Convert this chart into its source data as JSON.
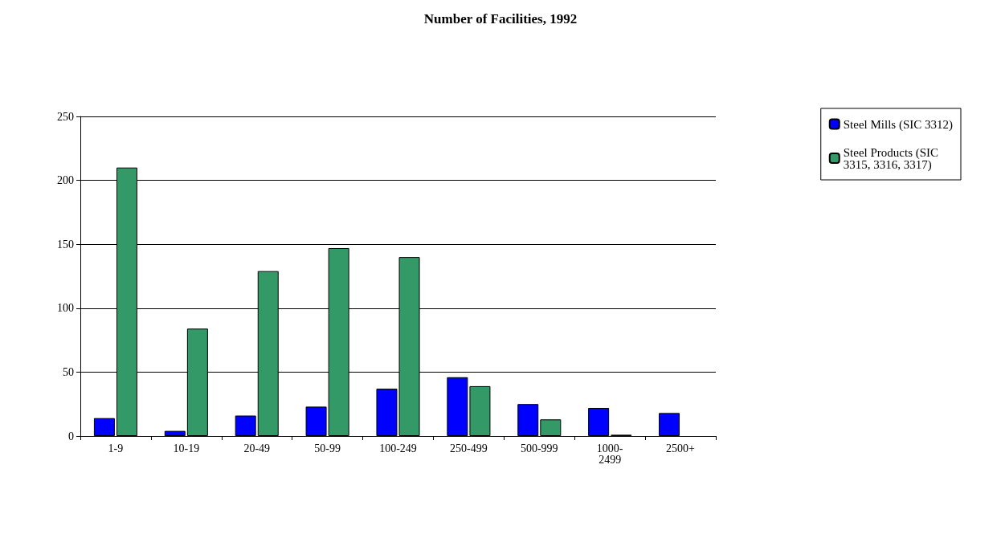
{
  "chart_data": {
    "type": "bar",
    "title": "Number of Facilities, 1992",
    "categories": [
      "1-9",
      "10-19",
      "20-49",
      "50-99",
      "100-249",
      "250-499",
      "500-999",
      "1000-2499",
      "2500+"
    ],
    "series": [
      {
        "name": "Steel Mills (SIC 3312)",
        "color": "#0000ff",
        "values": [
          14,
          4,
          16,
          23,
          37,
          46,
          25,
          22,
          18
        ]
      },
      {
        "name": "Steel Products (SIC 3315, 3316, 3317)",
        "color": "#339966",
        "values": [
          210,
          84,
          129,
          147,
          140,
          39,
          13,
          1,
          0
        ]
      }
    ],
    "ylim": [
      0,
      250
    ],
    "yticks": [
      0,
      50,
      100,
      150,
      200,
      250
    ],
    "grid": "y",
    "legend": "right"
  }
}
